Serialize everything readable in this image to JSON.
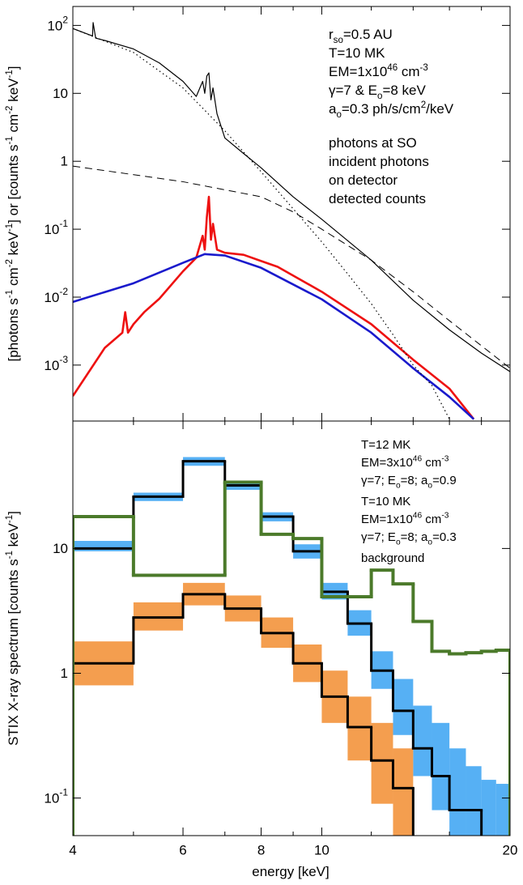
{
  "chart_data": [
    {
      "type": "line",
      "ylabel": [
        "[photons s",
        {
          "sup": "-1"
        },
        " cm",
        {
          "sup": "-2"
        },
        " keV",
        {
          "sup": "-1"
        },
        "] or [counts s",
        {
          "sup": "-1"
        },
        " cm",
        {
          "sup": "-2"
        },
        " keV",
        {
          "sup": "-1"
        },
        "]"
      ],
      "xlim": [
        4,
        20
      ],
      "xscale": "log",
      "ylim": [
        0.00015,
        190
      ],
      "yscale": "log",
      "yticks": [
        {
          "value": 100,
          "label": "10",
          "sup": "2"
        },
        10,
        1,
        {
          "value": 0.1,
          "label": "10",
          "sup": "-1"
        },
        {
          "value": 0.01,
          "label": "10",
          "sup": "-2"
        },
        {
          "value": 0.001,
          "label": "10",
          "sup": "-3"
        }
      ],
      "annotations": [
        [
          "r",
          {
            "sub": "so"
          },
          "=0.5 AU"
        ],
        [
          "T=10 MK"
        ],
        [
          "EM=1x10",
          {
            "sup": "46"
          },
          " cm",
          {
            "sup": "-3"
          }
        ],
        [
          "γ=7 & E",
          {
            "sub": "o"
          },
          "=8 keV"
        ],
        [
          "a",
          {
            "sub": "o"
          },
          "=0.3 ph/s/cm",
          {
            "sup": "2"
          },
          "/keV"
        ]
      ],
      "series": [
        {
          "name": "photons at SO",
          "color": "#000000",
          "width": 1.2,
          "x": [
            4,
            4.3,
            4.31,
            4.35,
            4.5,
            5,
            5.5,
            6,
            6.3,
            6.45,
            6.5,
            6.55,
            6.6,
            6.65,
            6.7,
            6.8,
            7,
            7.5,
            8,
            9,
            10,
            12,
            14,
            16,
            18,
            20
          ],
          "values": [
            90,
            70,
            110,
            65,
            60,
            45,
            28,
            15,
            9,
            15,
            10,
            18,
            20,
            8,
            12,
            5,
            2.2,
            1.3,
            0.8,
            0.3,
            0.14,
            0.035,
            0.009,
            0.0033,
            0.0015,
            0.0008
          ]
        },
        {
          "name": [
            "incident photons",
            "on detector"
          ],
          "color": "#ee1111",
          "width": 2.6,
          "x": [
            4,
            4.5,
            4.8,
            4.85,
            4.9,
            5,
            5.2,
            5.5,
            6,
            6.3,
            6.45,
            6.5,
            6.55,
            6.6,
            6.65,
            6.7,
            6.8,
            7,
            7.5,
            8,
            8.5,
            10,
            12,
            14,
            16,
            17.5
          ],
          "values": [
            0.00035,
            0.0018,
            0.003,
            0.006,
            0.003,
            0.004,
            0.006,
            0.0095,
            0.024,
            0.038,
            0.08,
            0.05,
            0.15,
            0.3,
            0.07,
            0.12,
            0.05,
            0.045,
            0.042,
            0.034,
            0.028,
            0.012,
            0.004,
            0.0012,
            0.00045,
            0.00016
          ]
        },
        {
          "name": "detected counts",
          "color": "#1a1acc",
          "width": 2.6,
          "x": [
            4,
            5,
            6,
            6.5,
            7,
            8,
            10,
            12,
            14,
            16,
            17.5
          ],
          "values": [
            0.0085,
            0.016,
            0.032,
            0.043,
            0.041,
            0.027,
            0.0093,
            0.003,
            0.0009,
            0.00034,
            0.00016
          ]
        },
        {
          "color": "#000000",
          "width": 1,
          "dash": "dashed",
          "x": [
            4,
            6,
            8,
            9,
            10,
            12,
            14,
            16,
            20
          ],
          "values": [
            0.85,
            0.5,
            0.3,
            0.18,
            0.1,
            0.035,
            0.012,
            0.0045,
            0.0009
          ]
        },
        {
          "color": "#000000",
          "width": 1.2,
          "dash": "dotted",
          "x": [
            4,
            5,
            6,
            7,
            8,
            9,
            10,
            11,
            12,
            13,
            14,
            15,
            16
          ],
          "values": [
            90,
            40,
            12,
            2.8,
            0.7,
            0.2,
            0.065,
            0.022,
            0.008,
            0.0028,
            0.001,
            0.0005,
            0.00016
          ]
        }
      ]
    },
    {
      "type": "histogram",
      "xlabel": "energy [keV]",
      "ylabel": [
        "STIX X-ray spectrum [counts s",
        {
          "sup": "-1"
        },
        " keV",
        {
          "sup": "-1"
        },
        "]"
      ],
      "xlim": [
        4,
        20
      ],
      "xscale": "log",
      "xticks": [
        4,
        6,
        8,
        10,
        20
      ],
      "xminor": [
        5,
        7,
        9,
        12,
        14,
        16,
        18
      ],
      "ylim": [
        0.05,
        105
      ],
      "yscale": "log",
      "yticks": [
        10,
        1,
        {
          "value": 0.1,
          "label": "10",
          "sup": "-1"
        }
      ],
      "bins": [
        4,
        5,
        6,
        7,
        8,
        9,
        10,
        11,
        12,
        13,
        14,
        15,
        16,
        17,
        18,
        19,
        20
      ],
      "series": [
        {
          "color": "#1e96f0",
          "line_color": "#000000",
          "label": [
            [
              "T=12 MK"
            ],
            [
              "EM=3x10",
              {
                "sup": "46"
              },
              " cm",
              {
                "sup": "-3"
              }
            ],
            [
              "γ=7; E",
              {
                "sub": "o"
              },
              "=8; a",
              {
                "sub": "o"
              },
              "=0.9"
            ]
          ],
          "values": [
            10,
            26,
            50,
            32,
            18,
            9.5,
            4.5,
            2.5,
            1.05,
            0.5,
            0.25,
            0.15,
            0.08,
            0.08,
            null,
            null
          ],
          "low": [
            9.5,
            24,
            46,
            29.5,
            16.5,
            8.3,
            3.9,
            2.0,
            0.75,
            0.32,
            0.15,
            0.08,
            0.05,
            0.05,
            0.05,
            0.05
          ],
          "high": [
            11.5,
            28,
            54,
            35,
            19.5,
            10.8,
            5.3,
            3.2,
            1.5,
            0.9,
            0.55,
            0.4,
            0.25,
            0.18,
            0.14,
            0.13
          ]
        },
        {
          "color": "#f07d14",
          "line_color": "#000000",
          "label": [
            [
              "T=10 MK"
            ],
            [
              "EM=1x10",
              {
                "sup": "46"
              },
              " cm",
              {
                "sup": "-3"
              }
            ],
            [
              "γ=7; E",
              {
                "sub": "o"
              },
              "=8; a",
              {
                "sub": "o"
              },
              "=0.3"
            ]
          ],
          "values": [
            1.2,
            2.8,
            4.3,
            3.3,
            2.1,
            1.2,
            0.65,
            0.37,
            0.2,
            0.12,
            null,
            null,
            null,
            null,
            null,
            null
          ],
          "low": [
            0.8,
            2.2,
            3.5,
            2.6,
            1.6,
            0.85,
            0.4,
            0.2,
            0.09,
            0.05,
            null,
            null,
            null,
            null,
            null,
            null
          ],
          "high": [
            1.8,
            3.7,
            5.3,
            4.2,
            2.8,
            1.7,
            1.05,
            0.65,
            0.4,
            0.25,
            null,
            null,
            null,
            null,
            null,
            null
          ]
        },
        {
          "name": "background",
          "color": "#4b7a2a",
          "values": [
            18,
            6.1,
            6.1,
            34,
            13,
            12,
            4.1,
            4.1,
            6.7,
            5.2,
            2.6,
            1.5,
            1.43,
            1.46,
            1.5,
            1.53
          ]
        }
      ]
    }
  ]
}
